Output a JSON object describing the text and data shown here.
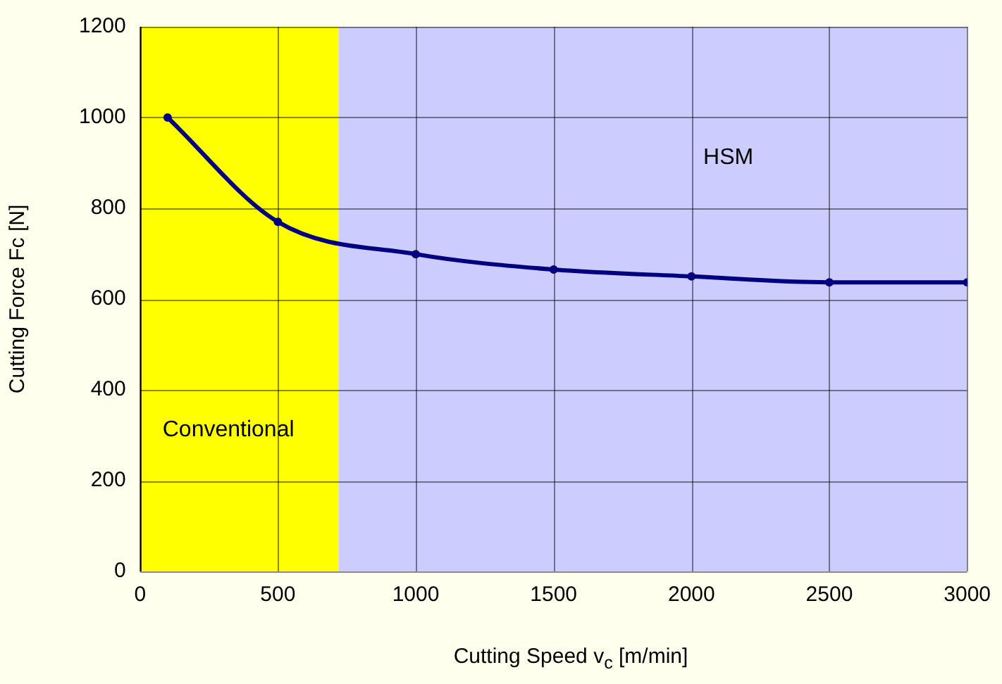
{
  "chart_data": {
    "type": "line",
    "xlabel": "Cutting Speed v$_{c}$ [m/min]",
    "ylabel": "Cutting Force Fc [N]",
    "x": [
      100,
      500,
      1000,
      1500,
      2000,
      2500,
      3000
    ],
    "series": [
      {
        "color": "#000080",
        "values": [
          1000,
          770,
          699,
          665,
          650,
          637,
          637
        ]
      }
    ],
    "xlim": [
      0,
      3000
    ],
    "xticks": [
      0,
      500,
      1000,
      1500,
      2000,
      2500,
      3000
    ],
    "ylim": [
      0,
      1200
    ],
    "yticks": [
      0,
      200,
      400,
      600,
      800,
      1000,
      1200
    ],
    "grid": true,
    "legend": false,
    "marker": "circle",
    "line_style": "solid",
    "bands": [
      {
        "axis": "x",
        "from": 0,
        "to": 720,
        "label": "Conventional",
        "color": "#ffff00"
      },
      {
        "axis": "x",
        "from": 720,
        "to": 3000,
        "label": "HSM",
        "color": "#ccccff"
      }
    ]
  }
}
